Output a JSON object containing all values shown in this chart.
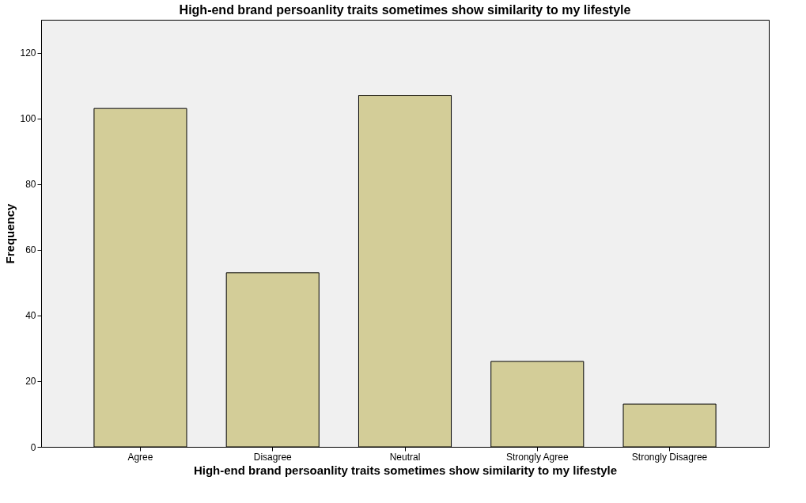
{
  "chart_data": {
    "type": "bar",
    "title": "High-end brand persoanlity traits sometimes show similarity to my lifestyle",
    "xlabel": "High-end brand persoanlity traits sometimes show similarity to my lifestyle",
    "ylabel": "Frequency",
    "categories": [
      "Agree",
      "Disagree",
      "Neutral",
      "Strongly Agree",
      "Strongly Disagree"
    ],
    "values": [
      103,
      53,
      107,
      26,
      13
    ],
    "color": "#d3cd98",
    "ylim": [
      0,
      130
    ],
    "yticks": [
      0,
      20,
      40,
      60,
      80,
      100,
      120
    ],
    "grid": false
  }
}
